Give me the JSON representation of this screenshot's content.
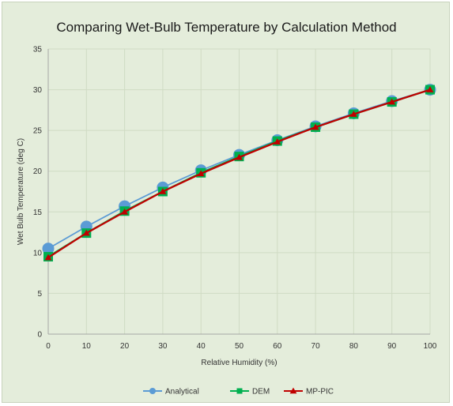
{
  "chart_data": {
    "type": "line",
    "title": "Comparing Wet-Bulb Temperature by Calculation Method",
    "xlabel": "Relative Humidity (%)",
    "ylabel": "Wet Bulb Temperature (deg C)",
    "xlim": [
      0,
      100
    ],
    "ylim": [
      0,
      35
    ],
    "x_ticks": [
      0,
      10,
      20,
      30,
      40,
      50,
      60,
      70,
      80,
      90,
      100
    ],
    "y_ticks": [
      0,
      5,
      10,
      15,
      20,
      25,
      30,
      35
    ],
    "grid": true,
    "legend_position": "bottom",
    "x": [
      0,
      10,
      20,
      30,
      40,
      50,
      60,
      70,
      80,
      90,
      100
    ],
    "series": [
      {
        "name": "Analytical",
        "color": "#5b9bd5",
        "marker": "circle",
        "values": [
          10.5,
          13.2,
          15.7,
          18.0,
          20.1,
          22.0,
          23.8,
          25.5,
          27.1,
          28.6,
          30.0
        ]
      },
      {
        "name": "DEM",
        "color": "#00b050",
        "marker": "square",
        "values": [
          9.5,
          12.4,
          15.1,
          17.5,
          19.8,
          21.8,
          23.7,
          25.4,
          27.0,
          28.5,
          30.0
        ]
      },
      {
        "name": "MP-PIC",
        "color": "#c00000",
        "marker": "triangle",
        "values": [
          9.4,
          12.4,
          15.0,
          17.5,
          19.7,
          21.7,
          23.6,
          25.4,
          27.0,
          28.5,
          30.0
        ]
      }
    ]
  }
}
